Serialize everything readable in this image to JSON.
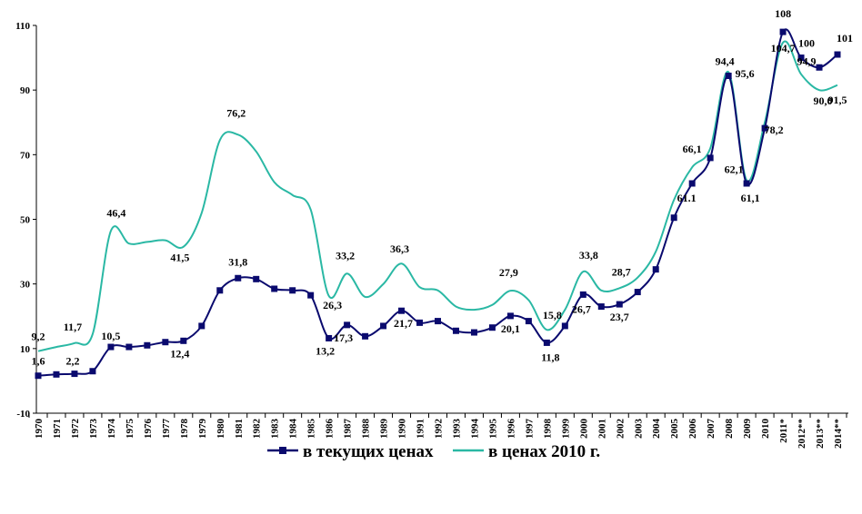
{
  "chart_data": {
    "type": "line",
    "title": "",
    "xlabel": "",
    "ylabel": "",
    "ylim": [
      -10,
      110
    ],
    "yticks": [
      110,
      90,
      70,
      50,
      30,
      10,
      -10
    ],
    "categories": [
      "1970",
      "1971",
      "1972",
      "1973",
      "1974",
      "1975",
      "1976",
      "1977",
      "1978",
      "1979",
      "1980",
      "1981",
      "1982",
      "1983",
      "1984",
      "1985",
      "1986",
      "1987",
      "1988",
      "1989",
      "1990",
      "1991",
      "1992",
      "1993",
      "1994",
      "1995",
      "1996",
      "1997",
      "1998",
      "1999",
      "2000",
      "2001",
      "2002",
      "2003",
      "2004",
      "2005",
      "2006",
      "2007",
      "2008",
      "2009",
      "2010",
      "2011*",
      "2012**",
      "2013**",
      "2014**"
    ],
    "legend_position": "bottom",
    "series": [
      {
        "name": "в текущих ценах",
        "color": "#0a0a6e",
        "marker": "square",
        "values": [
          1.6,
          2.0,
          2.2,
          3.0,
          10.5,
          10.5,
          11.0,
          12.0,
          12.4,
          17.0,
          28.0,
          31.8,
          31.5,
          28.5,
          28.0,
          26.5,
          13.2,
          17.3,
          13.8,
          17.0,
          21.7,
          18.0,
          18.5,
          15.5,
          15.0,
          16.5,
          20.1,
          18.5,
          11.8,
          17.0,
          26.7,
          23.0,
          23.7,
          27.5,
          34.5,
          50.5,
          61.1,
          69.0,
          94.4,
          61.1,
          78.2,
          108,
          100,
          97,
          101
        ]
      },
      {
        "name": "в ценах 2010 г.",
        "color": "#2ab8a4",
        "marker": "none",
        "values": [
          9.2,
          10.5,
          11.7,
          14.5,
          46.4,
          42.5,
          43.0,
          43.5,
          41.5,
          52.0,
          74.5,
          76.2,
          71.0,
          61.5,
          57.5,
          53.0,
          26.3,
          33.2,
          26.0,
          30.0,
          36.3,
          29.0,
          28.0,
          23.0,
          22.0,
          23.5,
          27.9,
          25.0,
          15.8,
          22.0,
          33.8,
          28.0,
          28.7,
          32.0,
          40.0,
          56.0,
          66.1,
          72.0,
          95.6,
          62.1,
          80.0,
          104.7,
          94.9,
          90.0,
          91.5
        ]
      }
    ],
    "data_labels": [
      {
        "series": 1,
        "index": 0,
        "text": "9,2"
      },
      {
        "series": 0,
        "index": 0,
        "text": "1,6"
      },
      {
        "series": 0,
        "index": 2,
        "text": "2,2"
      },
      {
        "series": 1,
        "index": 2,
        "text": "11,7"
      },
      {
        "series": 1,
        "index": 4,
        "text": "46,4"
      },
      {
        "series": 0,
        "index": 4,
        "text": "10,5"
      },
      {
        "series": 1,
        "index": 8,
        "text": "41,5"
      },
      {
        "series": 0,
        "index": 8,
        "text": "12,4"
      },
      {
        "series": 1,
        "index": 11,
        "text": "76,2"
      },
      {
        "series": 0,
        "index": 11,
        "text": "31,8"
      },
      {
        "series": 1,
        "index": 16,
        "text": "26,3"
      },
      {
        "series": 0,
        "index": 16,
        "text": "13,2"
      },
      {
        "series": 1,
        "index": 17,
        "text": "33,2"
      },
      {
        "series": 0,
        "index": 17,
        "text": "17,3"
      },
      {
        "series": 1,
        "index": 20,
        "text": "36,3"
      },
      {
        "series": 0,
        "index": 20,
        "text": "21,7"
      },
      {
        "series": 1,
        "index": 26,
        "text": "27,9"
      },
      {
        "series": 0,
        "index": 26,
        "text": "20,1"
      },
      {
        "series": 1,
        "index": 28,
        "text": "15,8"
      },
      {
        "series": 0,
        "index": 28,
        "text": "11,8"
      },
      {
        "series": 1,
        "index": 30,
        "text": "33,8"
      },
      {
        "series": 0,
        "index": 30,
        "text": "26,7"
      },
      {
        "series": 1,
        "index": 32,
        "text": "28,7"
      },
      {
        "series": 0,
        "index": 32,
        "text": "23,7"
      },
      {
        "series": 1,
        "index": 36,
        "text": "66,1"
      },
      {
        "series": 0,
        "index": 36,
        "text": "61.1"
      },
      {
        "series": 0,
        "index": 38,
        "text": "94,4"
      },
      {
        "series": 1,
        "index": 38,
        "text": "95,6"
      },
      {
        "series": 1,
        "index": 39,
        "text": "62,1"
      },
      {
        "series": 0,
        "index": 39,
        "text": "61,1"
      },
      {
        "series": 0,
        "index": 40,
        "text": "78,2"
      },
      {
        "series": 0,
        "index": 41,
        "text": "108"
      },
      {
        "series": 1,
        "index": 41,
        "text": "104,7"
      },
      {
        "series": 0,
        "index": 42,
        "text": "100"
      },
      {
        "series": 1,
        "index": 42,
        "text": "94,9"
      },
      {
        "series": 1,
        "index": 43,
        "text": "90,0"
      },
      {
        "series": 0,
        "index": 44,
        "text": "101"
      },
      {
        "series": 1,
        "index": 44,
        "text": "91,5"
      }
    ]
  }
}
